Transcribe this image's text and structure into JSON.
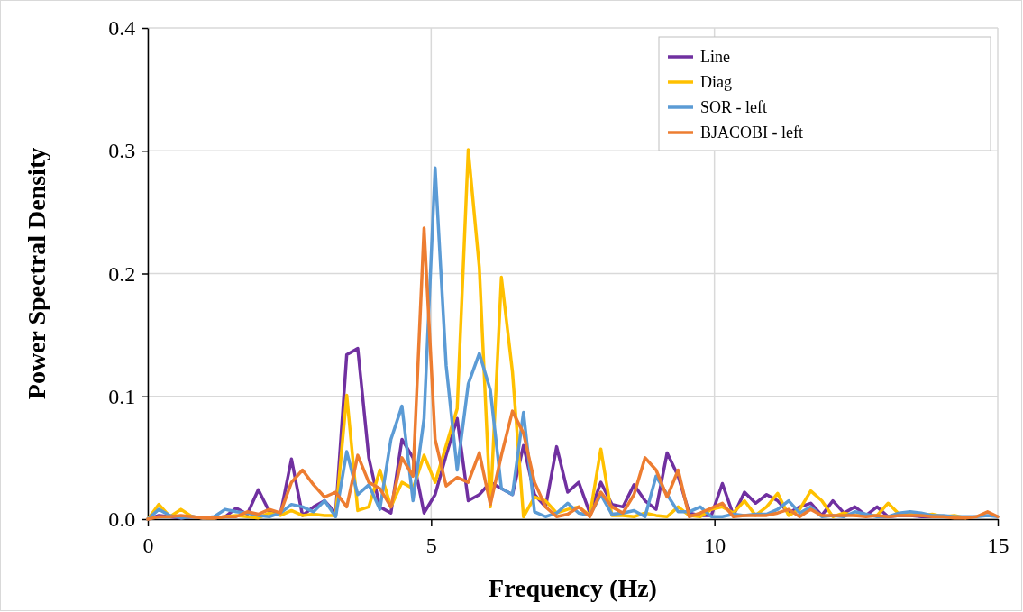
{
  "chart_data": {
    "type": "line",
    "xlabel": "Frequency (Hz)",
    "ylabel": "Power Spectral Density",
    "x": [
      0,
      0.195,
      0.39,
      0.585,
      0.78,
      0.975,
      1.17,
      1.365,
      1.56,
      1.755,
      1.95,
      2.145,
      2.34,
      2.535,
      2.73,
      2.925,
      3.12,
      3.315,
      3.51,
      3.705,
      3.9,
      4.095,
      4.29,
      4.485,
      4.68,
      4.875,
      5.07,
      5.265,
      5.46,
      5.655,
      5.85,
      6.045,
      6.24,
      6.435,
      6.63,
      6.825,
      7.02,
      7.215,
      7.41,
      7.605,
      7.8,
      7.995,
      8.19,
      8.385,
      8.58,
      8.775,
      8.97,
      9.165,
      9.36,
      9.555,
      9.75,
      9.945,
      10.14,
      10.335,
      10.53,
      10.725,
      10.92,
      11.115,
      11.31,
      11.505,
      11.7,
      11.895,
      12.09,
      12.285,
      12.48,
      12.675,
      12.87,
      13.065,
      13.26,
      13.455,
      13.65,
      13.845,
      14.04,
      14.235,
      14.43,
      14.625,
      14.82,
      15
    ],
    "series": [
      {
        "name": "Line",
        "color": "#7030a0",
        "values": [
          0,
          0.003,
          0.002,
          0.001,
          0.002,
          0.001,
          0.001,
          0.002,
          0.009,
          0.004,
          0.024,
          0.006,
          0.004,
          0.049,
          0.003,
          0.01,
          0.015,
          0.005,
          0.134,
          0.139,
          0.05,
          0.01,
          0.005,
          0.065,
          0.05,
          0.005,
          0.02,
          0.052,
          0.082,
          0.015,
          0.02,
          0.03,
          0.025,
          0.02,
          0.06,
          0.02,
          0.01,
          0.059,
          0.022,
          0.03,
          0.005,
          0.03,
          0.012,
          0.01,
          0.028,
          0.015,
          0.008,
          0.054,
          0.035,
          0.005,
          0.003,
          0.003,
          0.029,
          0.003,
          0.022,
          0.013,
          0.02,
          0.015,
          0.005,
          0.01,
          0.013,
          0.003,
          0.015,
          0.005,
          0.01,
          0.003,
          0.01,
          0.002,
          0.003,
          0.003,
          0.002,
          0.002,
          0.002,
          null,
          null,
          null,
          null,
          null
        ]
      },
      {
        "name": "Diag",
        "color": "#ffc000",
        "values": [
          0,
          0.012,
          0.002,
          0.008,
          0.002,
          0.001,
          0.001,
          0.002,
          0.003,
          0.002,
          0.001,
          0.005,
          0.003,
          0.007,
          0.003,
          0.004,
          0.003,
          0.003,
          0.101,
          0.007,
          0.01,
          0.04,
          0.01,
          0.03,
          0.025,
          0.052,
          0.03,
          0.06,
          0.09,
          0.301,
          0.205,
          0.01,
          0.197,
          0.12,
          0.002,
          0.018,
          0.015,
          0.005,
          0.008,
          0.01,
          0.003,
          0.057,
          0.003,
          0.003,
          0.002,
          0.005,
          0.003,
          0.002,
          0.01,
          0.003,
          0.002,
          0.008,
          0.01,
          0.005,
          0.015,
          0.003,
          0.01,
          0.021,
          0.003,
          0.008,
          0.023,
          0.015,
          0.002,
          0.005,
          0.003,
          0.003,
          0.003,
          0.013,
          0.004,
          0.005,
          0.003,
          0.004,
          0.002,
          0.003,
          0.001,
          null,
          null,
          null
        ]
      },
      {
        "name": "SOR - left",
        "color": "#5b9bd5",
        "values": [
          0,
          0.008,
          0.003,
          0.001,
          0.002,
          0.001,
          0.002,
          0.008,
          0.006,
          0.005,
          0.003,
          0.002,
          0.005,
          0.012,
          0.01,
          0.006,
          0.015,
          0.002,
          0.055,
          0.02,
          0.028,
          0.008,
          0.065,
          0.092,
          0.015,
          0.082,
          0.286,
          0.125,
          0.04,
          0.11,
          0.135,
          0.105,
          0.025,
          0.02,
          0.087,
          0.006,
          0.002,
          0.005,
          0.013,
          0.005,
          0.003,
          0.02,
          0.004,
          0.005,
          0.007,
          0.002,
          0.035,
          0.02,
          0.006,
          0.006,
          0.01,
          0.002,
          0.002,
          0.004,
          0.003,
          0.004,
          0.004,
          0.008,
          0.015,
          0.005,
          0.01,
          0.002,
          0.003,
          0.002,
          0.006,
          0.004,
          0.002,
          0.002,
          0.005,
          0.006,
          0.005,
          0.003,
          0.003,
          0.002,
          0.002,
          0.002,
          0.003,
          0.002
        ]
      },
      {
        "name": "BJACOBI - left",
        "color": "#ed7d31",
        "values": [
          0,
          0.002,
          0.002,
          0.003,
          0.002,
          0.001,
          0.001,
          0.002,
          0.002,
          0.006,
          0.004,
          0.008,
          0.005,
          0.03,
          0.04,
          0.028,
          0.018,
          0.022,
          0.01,
          0.052,
          0.03,
          0.025,
          0.01,
          0.05,
          0.035,
          0.237,
          0.065,
          0.027,
          0.034,
          0.03,
          0.054,
          0.012,
          0.052,
          0.088,
          0.07,
          0.03,
          0.01,
          0.002,
          0.004,
          0.01,
          0.002,
          0.022,
          0.01,
          0.005,
          0.02,
          0.05,
          0.04,
          0.018,
          0.04,
          0.002,
          0.005,
          0.009,
          0.013,
          0.002,
          0.003,
          0.003,
          0.003,
          0.005,
          0.008,
          0.002,
          0.008,
          0.003,
          0.003,
          0.003,
          0.003,
          0.002,
          0.003,
          0.002,
          0.003,
          0.003,
          0.003,
          0.002,
          0.002,
          0.001,
          0.001,
          0.002,
          0.006,
          0.002
        ]
      }
    ],
    "xlim": [
      0,
      15
    ],
    "xticks": [
      0,
      5,
      10,
      15
    ],
    "ylim": [
      0,
      0.4
    ],
    "yticks": [
      {
        "value": 0,
        "label": "0.0"
      },
      {
        "value": 0.1,
        "label": "0.1"
      },
      {
        "value": 0.2,
        "label": "0.2"
      },
      {
        "value": 0.3,
        "label": "0.3"
      },
      {
        "value": 0.4,
        "label": "0.4"
      }
    ],
    "grid": true,
    "legend": "top right",
    "marker": "none",
    "line_style": "solid"
  }
}
